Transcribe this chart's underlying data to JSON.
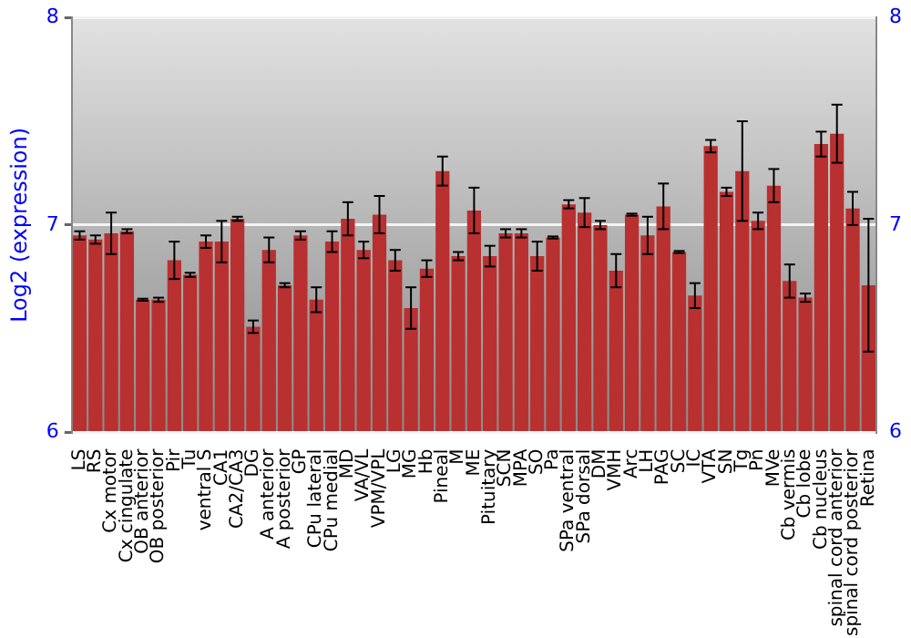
{
  "chart_data": {
    "type": "bar",
    "ylabel": "Log2 (expression)",
    "categories": [
      "LS",
      "RS",
      "Cx motor",
      "Cx cingulate",
      "OB anterior",
      "OB posterior",
      "Pir",
      "Tu",
      "ventral S",
      "CA1",
      "CA2/CA3",
      "DG",
      "A anterior",
      "A posterior",
      "GP",
      "CPu lateral",
      "CPu medial",
      "MD",
      "VA/VL",
      "VPM/VPL",
      "LG",
      "MG",
      "Hb",
      "Pineal",
      "M",
      "ME",
      "Pituitary",
      "SCN",
      "MPA",
      "SO",
      "Pa",
      "SPa ventral",
      "SPa dorsal",
      "DM",
      "VMH",
      "Arc",
      "LH",
      "PAG",
      "SC",
      "IC",
      "VTA",
      "SN",
      "Tg",
      "Pn",
      "MVe",
      "Cb vermis",
      "Cb lobe",
      "Cb nucleus",
      "spinal cord anterior",
      "spinal cord posterior",
      "Retina"
    ],
    "values": [
      6.95,
      6.93,
      6.96,
      6.97,
      6.64,
      6.64,
      6.83,
      6.76,
      6.92,
      6.92,
      7.03,
      6.51,
      6.88,
      6.71,
      6.95,
      6.64,
      6.92,
      7.03,
      6.88,
      7.05,
      6.83,
      6.6,
      6.79,
      7.26,
      6.85,
      7.07,
      6.85,
      6.96,
      6.96,
      6.85,
      6.94,
      7.1,
      7.06,
      7.0,
      6.78,
      7.05,
      6.95,
      7.09,
      6.87,
      6.66,
      7.38,
      7.16,
      7.26,
      7.02,
      7.19,
      6.73,
      6.65,
      7.39,
      7.44,
      7.08,
      6.71
    ],
    "errors": [
      0.02,
      0.02,
      0.1,
      0.01,
      0.005,
      0.01,
      0.09,
      0.01,
      0.03,
      0.1,
      0.01,
      0.03,
      0.06,
      0.01,
      0.02,
      0.06,
      0.05,
      0.08,
      0.04,
      0.09,
      0.05,
      0.1,
      0.04,
      0.07,
      0.02,
      0.11,
      0.05,
      0.02,
      0.02,
      0.07,
      0.005,
      0.02,
      0.07,
      0.02,
      0.08,
      0.005,
      0.09,
      0.11,
      0.005,
      0.06,
      0.03,
      0.02,
      0.24,
      0.04,
      0.08,
      0.08,
      0.02,
      0.06,
      0.14,
      0.08,
      0.32
    ],
    "color": "#b83030",
    "ylim": [
      6,
      8
    ],
    "yticks": [
      6,
      7,
      8
    ],
    "y2lim": [
      6,
      8
    ],
    "y2ticks": [
      6,
      7,
      8
    ],
    "grid": "y",
    "legend": false
  }
}
